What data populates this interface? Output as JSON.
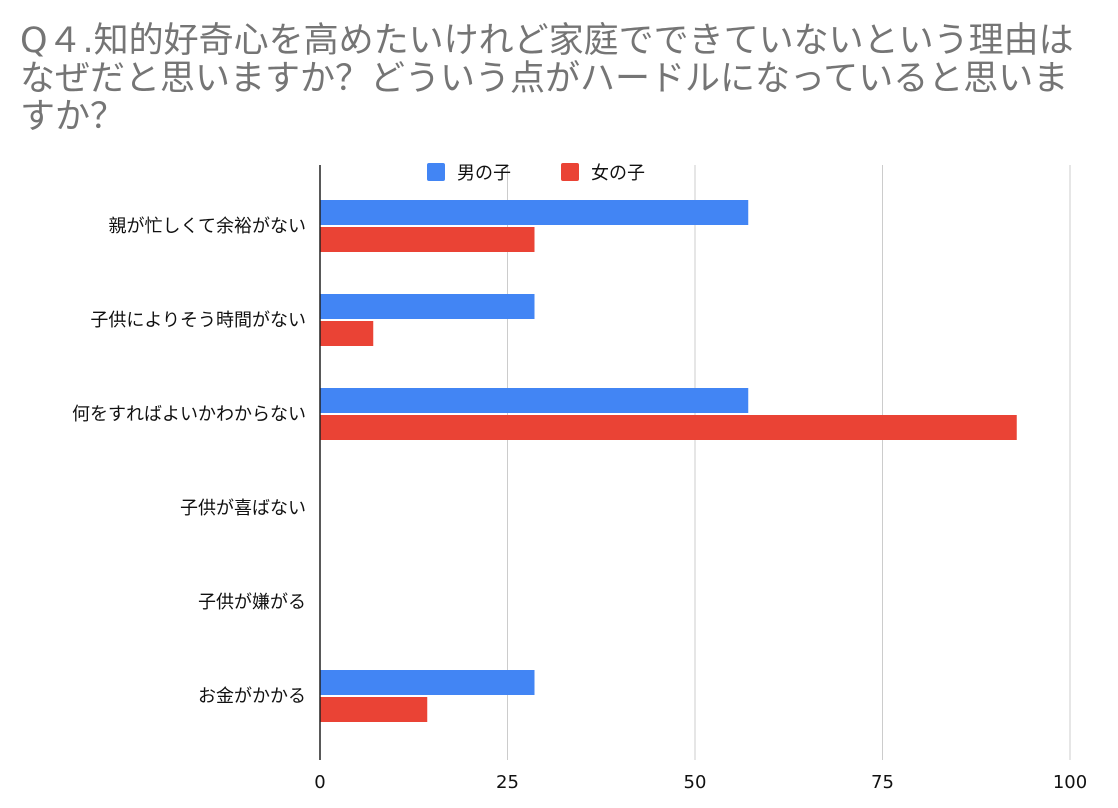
{
  "chart_data": {
    "type": "bar",
    "orientation": "horizontal",
    "title": "Q４.知的好奇心を高めたいけれど家庭でできていないという理由はなぜだと思いますか？どういう点がハードルになっていると思いますか？",
    "categories": [
      "親が忙しくて余裕がない",
      "子供によりそう時間がない",
      "何をすればよいかわからない",
      "子供が喜ばない",
      "子供が嫌がる",
      "お金がかかる"
    ],
    "series": [
      {
        "name": "男の子",
        "color": "#4285f4",
        "values": [
          57.1,
          28.6,
          57.1,
          0,
          0,
          28.6
        ]
      },
      {
        "name": "女の子",
        "color": "#ea4335",
        "values": [
          28.6,
          7.1,
          92.9,
          0,
          0,
          14.3
        ]
      }
    ],
    "xlim": [
      0,
      100
    ],
    "xticks": [
      "0",
      "25",
      "50",
      "75",
      "100"
    ],
    "grid": true,
    "legend_position": "top"
  }
}
